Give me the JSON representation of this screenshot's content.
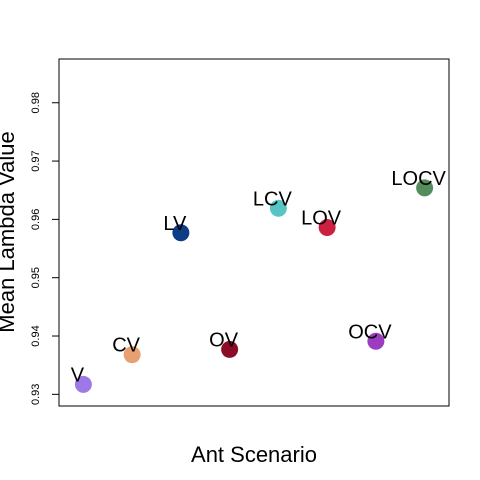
{
  "chart_data": {
    "type": "scatter",
    "title": "",
    "xlabel": "Ant Scenario",
    "ylabel": "Mean Lambda Value",
    "ylim": [
      0.928,
      0.9875
    ],
    "xlim": [
      0.5,
      8.5
    ],
    "y_ticks": [
      0.93,
      0.94,
      0.95,
      0.96,
      0.97,
      0.98
    ],
    "y_tick_labels": [
      "0.93",
      "0.94",
      "0.95",
      "0.96",
      "0.97",
      "0.98"
    ],
    "grid": false,
    "points": [
      {
        "label": "V",
        "x": 1,
        "y": 0.9317,
        "color": "#9c79e6"
      },
      {
        "label": "CV",
        "x": 2,
        "y": 0.9368,
        "color": "#e8a070"
      },
      {
        "label": "LV",
        "x": 3,
        "y": 0.9577,
        "color": "#0c3c84"
      },
      {
        "label": "OV",
        "x": 4,
        "y": 0.9377,
        "color": "#8c0c28"
      },
      {
        "label": "LCV",
        "x": 5,
        "y": 0.9619,
        "color": "#58c4c4"
      },
      {
        "label": "LOV",
        "x": 6,
        "y": 0.9586,
        "color": "#cc2040"
      },
      {
        "label": "OCV",
        "x": 7,
        "y": 0.9391,
        "color": "#9c3cc0"
      },
      {
        "label": "LOCV",
        "x": 8,
        "y": 0.9654,
        "color": "#548c5c"
      }
    ]
  }
}
